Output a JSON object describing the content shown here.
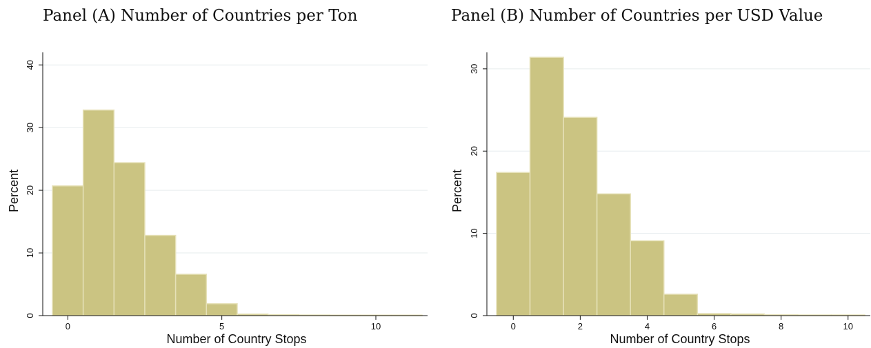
{
  "chart_data": [
    {
      "type": "bar",
      "title": "Panel (A) Number of Countries per Ton",
      "xlabel": "Number of Country Stops",
      "ylabel": "Percent",
      "categories": [
        "0",
        "1",
        "2",
        "3",
        "4",
        "5",
        "6",
        "7",
        "8",
        "9",
        "10",
        "11"
      ],
      "values": [
        20.7,
        32.8,
        24.4,
        12.8,
        6.6,
        1.9,
        0.25,
        0.15,
        0.1,
        0.08,
        0.08,
        0.08
      ],
      "xlim": [
        -0.5,
        11.5
      ],
      "ylim": [
        0,
        42
      ],
      "xticks": [
        "0",
        "5",
        "10"
      ],
      "yticks": [
        "0",
        "10",
        "20",
        "30",
        "40"
      ],
      "grid": true,
      "bar_color": "#cbc482",
      "bar_edge": "#e6e1b8",
      "axis_color": "#111111",
      "grid_color": "#e6ecee"
    },
    {
      "type": "bar",
      "title": "Panel (B) Number of Countries per USD Value",
      "xlabel": "Number of Country Stops",
      "ylabel": "Percent",
      "categories": [
        "0",
        "1",
        "2",
        "3",
        "4",
        "5",
        "6",
        "7",
        "8",
        "9",
        "10"
      ],
      "values": [
        17.4,
        31.4,
        24.1,
        14.8,
        9.1,
        2.6,
        0.25,
        0.2,
        0.1,
        0.08,
        0.08
      ],
      "xlim": [
        -0.5,
        10.5
      ],
      "ylim": [
        0,
        32
      ],
      "xticks": [
        "0",
        "2",
        "4",
        "6",
        "8",
        "10"
      ],
      "yticks": [
        "0",
        "10",
        "20",
        "30"
      ],
      "grid": true,
      "bar_color": "#cbc482",
      "bar_edge": "#e6e1b8",
      "axis_color": "#111111",
      "grid_color": "#e6ecee"
    }
  ]
}
